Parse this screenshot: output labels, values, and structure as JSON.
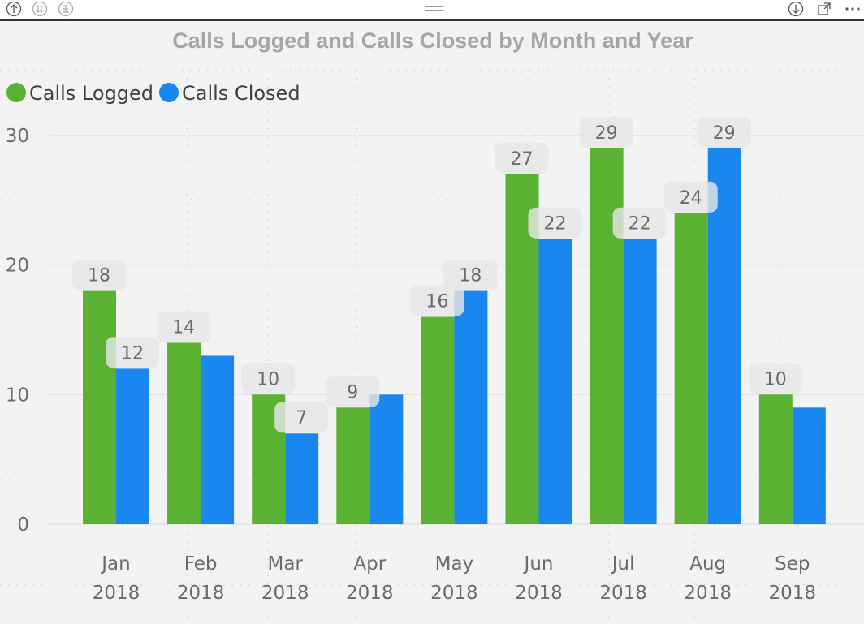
{
  "chart_data": {
    "type": "bar",
    "title": "Calls Logged and Calls Closed by Month and Year",
    "categories": [
      [
        "Jan",
        "2018"
      ],
      [
        "Feb",
        "2018"
      ],
      [
        "Mar",
        "2018"
      ],
      [
        "Apr",
        "2018"
      ],
      [
        "May",
        "2018"
      ],
      [
        "Jun",
        "2018"
      ],
      [
        "Jul",
        "2018"
      ],
      [
        "Aug",
        "2018"
      ],
      [
        "Sep",
        "2018"
      ]
    ],
    "series": [
      {
        "name": "Calls Logged",
        "color": "#5bb131",
        "values": [
          18,
          14,
          10,
          9,
          16,
          27,
          29,
          24,
          10
        ],
        "labels": [
          "18",
          "14",
          "10",
          "9",
          "16",
          "27",
          "29",
          "24",
          "10"
        ]
      },
      {
        "name": "Calls Closed",
        "color": "#1a87f0",
        "values": [
          12,
          13,
          7,
          10,
          18,
          22,
          22,
          29,
          9
        ],
        "labels": [
          "12",
          "",
          "7",
          "",
          "18",
          "22",
          "22",
          "29",
          ""
        ]
      }
    ],
    "yticks": [
      0,
      10,
      20,
      30
    ],
    "ylim": [
      0,
      30
    ],
    "grid": true,
    "legend_position": "top-left"
  },
  "toolbar": {
    "left_icons": [
      "drill-up-icon",
      "drill-down-all-icon",
      "expand-hierarchy-icon"
    ],
    "right_icons": [
      "drill-down-toggle-icon",
      "focus-mode-icon",
      "more-options-icon"
    ]
  }
}
